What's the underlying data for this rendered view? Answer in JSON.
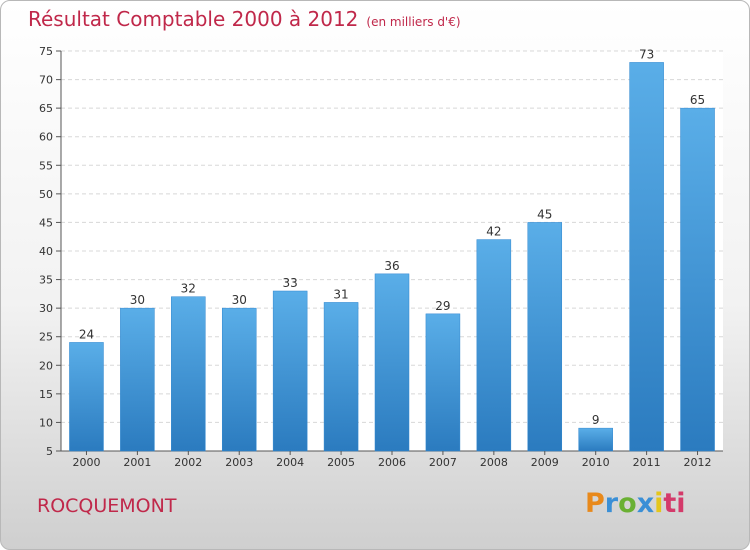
{
  "chart_data": {
    "type": "bar",
    "title": "Résultat Comptable 2000 à 2012",
    "unit_label": "(en milliers d'€)",
    "categories": [
      "2000",
      "2001",
      "2002",
      "2003",
      "2004",
      "2005",
      "2006",
      "2007",
      "2008",
      "2009",
      "2010",
      "2011",
      "2012"
    ],
    "values": [
      24,
      30,
      32,
      30,
      33,
      31,
      36,
      29,
      42,
      45,
      9,
      73,
      65
    ],
    "ylim": [
      5,
      75
    ],
    "yticks": [
      5,
      10,
      15,
      20,
      25,
      30,
      35,
      40,
      45,
      50,
      55,
      60,
      65,
      70,
      75
    ],
    "grid": true,
    "bar_color_top": "#5aaee8",
    "bar_color_bottom": "#2b7bbf",
    "xlabel": "",
    "ylabel": ""
  },
  "footer": {
    "commune": "ROCQUEMONT",
    "brand_letters": [
      "P",
      "r",
      "o",
      "x",
      "i",
      "ti"
    ]
  }
}
